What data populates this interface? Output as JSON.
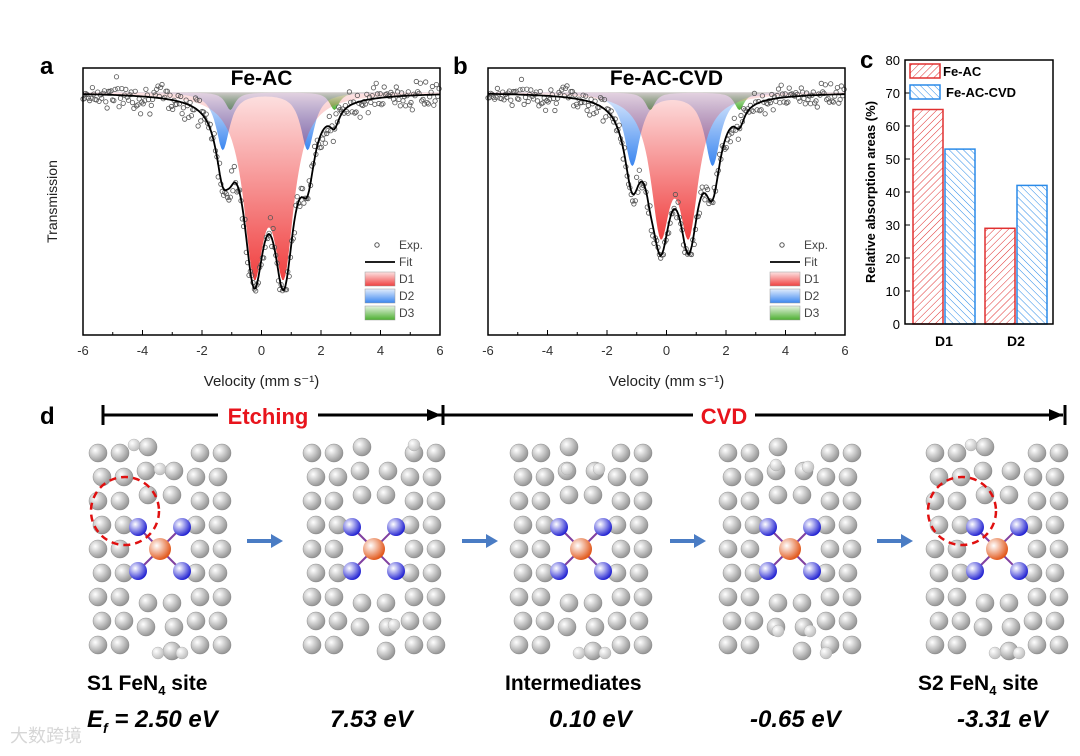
{
  "panel_labels": {
    "a": "a",
    "b": "b",
    "c": "c",
    "d": "d"
  },
  "chart_data": [
    {
      "id": "a",
      "type": "line",
      "title": "Fe-AC",
      "xlabel": "Velocity (mm s⁻¹)",
      "ylabel": "Transmission",
      "xlim": [
        -6,
        6
      ],
      "ylim": [
        0.0,
        1.1
      ],
      "xticks": [
        "-6",
        "-4",
        "-2",
        "0",
        "2",
        "4",
        "6"
      ],
      "baseline": 1.0,
      "components": [
        {
          "name": "D1",
          "lines": [
            -0.25,
            0.75
          ],
          "depth": 0.74,
          "hwhm": 0.42,
          "color": "#f04040"
        },
        {
          "name": "D2",
          "lines": [
            -1.3,
            1.55
          ],
          "depth": 0.26,
          "hwhm": 0.28,
          "color": "#3a86f0"
        },
        {
          "name": "D3",
          "lines": [
            -1.05,
            2.45
          ],
          "depth": 0.08,
          "hwhm": 0.2,
          "color": "#4caf30"
        }
      ],
      "exp_noise_sd": 0.03,
      "legend": [
        "Exp.",
        "Fit",
        "D1",
        "D2",
        "D3"
      ],
      "legend_position": "bottom-right"
    },
    {
      "id": "b",
      "type": "line",
      "title": "Fe-AC-CVD",
      "xlabel": "Velocity (mm s⁻¹)",
      "ylabel": "",
      "xlim": [
        -6,
        6
      ],
      "ylim": [
        0.0,
        1.1
      ],
      "xticks": [
        "-6",
        "-4",
        "-2",
        "0",
        "2",
        "4",
        "6"
      ],
      "baseline": 1.0,
      "components": [
        {
          "name": "D1",
          "lines": [
            -0.2,
            0.75
          ],
          "depth": 0.58,
          "hwhm": 0.4,
          "color": "#f04040"
        },
        {
          "name": "D2",
          "lines": [
            -1.15,
            1.55
          ],
          "depth": 0.33,
          "hwhm": 0.32,
          "color": "#3a86f0"
        },
        {
          "name": "D3",
          "lines": [
            -0.55,
            2.45
          ],
          "depth": 0.08,
          "hwhm": 0.2,
          "color": "#4caf30"
        }
      ],
      "exp_noise_sd": 0.025,
      "legend": [
        "Exp.",
        "Fit",
        "D1",
        "D2",
        "D3"
      ],
      "legend_position": "bottom-right"
    },
    {
      "id": "c",
      "type": "bar",
      "title": "",
      "xlabel": "",
      "ylabel": "Relative absorption areas (%)",
      "categories": [
        "D1",
        "D2"
      ],
      "ylim": [
        0,
        80
      ],
      "yticks": [
        "0",
        "10",
        "20",
        "30",
        "40",
        "50",
        "60",
        "70",
        "80"
      ],
      "series": [
        {
          "name": "Fe-AC",
          "values": [
            65,
            29
          ],
          "color": "#e03030"
        },
        {
          "name": "Fe-AC-CVD",
          "values": [
            53,
            42
          ],
          "color": "#2a8ae8"
        }
      ],
      "legend_position": "top-left"
    }
  ],
  "scheme": {
    "stage1": "Etching",
    "stage2": "CVD",
    "captions": {
      "s1": "S1 FeN",
      "s1_sub": "4",
      "s1_tail": " site",
      "mid": "Intermediates",
      "s2": "S2 FeN",
      "s2_sub": "4",
      "s2_tail": " site"
    },
    "energy_symbol": "E",
    "energy_sub": "f",
    "energies": [
      "= 2.50 eV",
      "7.53 eV",
      "0.10 eV",
      "-0.65 eV",
      "-3.31 eV"
    ],
    "colors": {
      "stage_text": "#e8141c",
      "arrow": "#4a7cc4",
      "carbon": "#909090",
      "nitrogen": "#1a1ad0",
      "iron": "#e05010",
      "hydrogen": "#eeeeee",
      "highlight": "#e01010"
    }
  },
  "watermark": "大数跨境"
}
